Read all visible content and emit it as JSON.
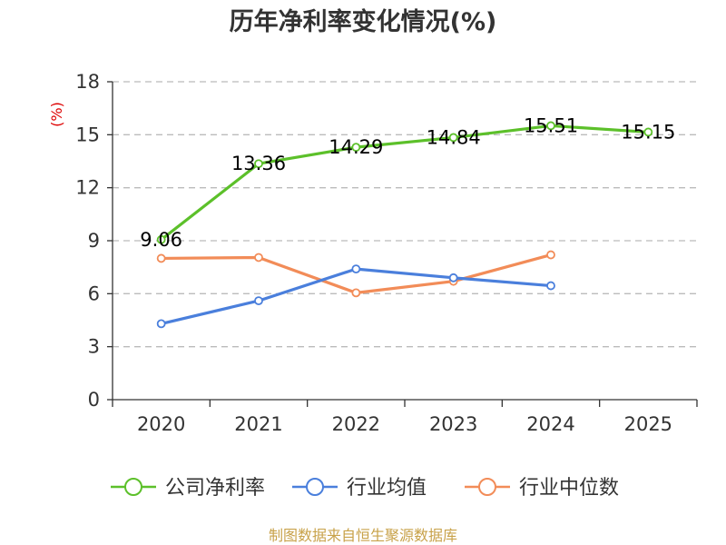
{
  "chart_data": {
    "type": "line",
    "title": "历年净利率变化情况(%)",
    "ylabel": "(%)",
    "categories": [
      "2020",
      "2021",
      "2022",
      "2023",
      "2024",
      "2025"
    ],
    "ylim": [
      0,
      18
    ],
    "yticks": [
      0,
      3,
      6,
      9,
      12,
      15,
      18
    ],
    "grid": true,
    "legend_position": "bottom",
    "series": [
      {
        "name": "公司净利率",
        "color": "#5cc02a",
        "values": [
          9.06,
          13.36,
          14.29,
          14.84,
          15.51,
          15.15
        ],
        "show_labels": true
      },
      {
        "name": "行业均值",
        "color": "#4a7fdc",
        "values": [
          4.3,
          5.6,
          7.4,
          6.9,
          6.45,
          null
        ],
        "show_labels": false
      },
      {
        "name": "行业中位数",
        "color": "#f28c58",
        "values": [
          8.0,
          8.05,
          6.05,
          6.7,
          8.2,
          null
        ],
        "show_labels": false
      }
    ]
  },
  "source": "制图数据来自恒生聚源数据库"
}
